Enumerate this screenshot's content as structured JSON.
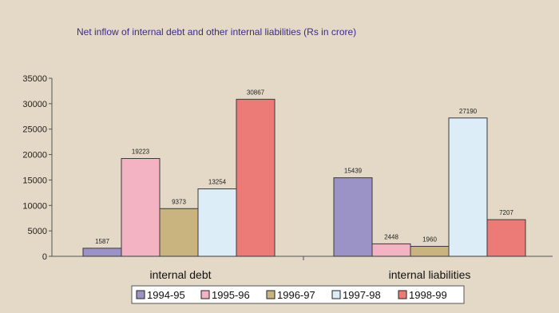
{
  "chart_data": {
    "type": "bar",
    "title": "Net inflow of internal debt and other internal liabilities (Rs in crore)",
    "xlabel": "",
    "ylabel": "",
    "categories": [
      "internal debt",
      "internal liabilities"
    ],
    "series": [
      {
        "name": "1994-95",
        "values": [
          1587,
          15439
        ],
        "color": "#9b93c6"
      },
      {
        "name": "1995-96",
        "values": [
          19223,
          2448
        ],
        "color": "#f4b3c2"
      },
      {
        "name": "1996-97",
        "values": [
          9373,
          1960
        ],
        "color": "#c9b37e"
      },
      {
        "name": "1997-98",
        "values": [
          13254,
          27190
        ],
        "color": "#dcedf7"
      },
      {
        "name": "1998-99",
        "values": [
          30867,
          7207
        ],
        "color": "#ec7b78"
      }
    ],
    "ylim": [
      0,
      35000
    ],
    "yticks": [
      "0",
      "5000",
      "10000",
      "15000",
      "20000",
      "25000",
      "30000",
      "35000"
    ],
    "legend_position": "bottom",
    "grid": false,
    "background_color": "#e4d9c7",
    "legend_box_color": "#ffffff"
  }
}
